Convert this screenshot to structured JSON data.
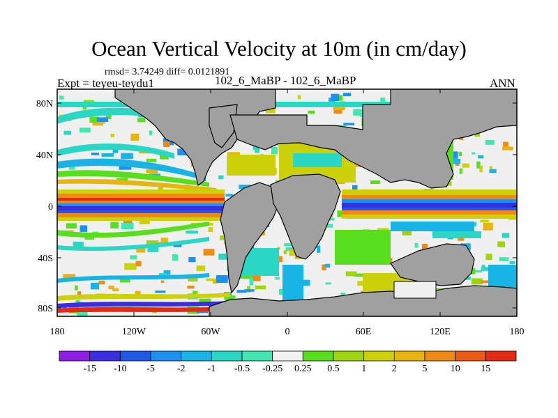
{
  "title": "Ocean Vertical Velocity at 10m (in cm/day)",
  "stats": "rmsd= 3.74249 diff= 0.0121891",
  "left_label": "Expt = teyeu-teydu1",
  "center_label": "102_6_MaBP - 102_6_MaBP",
  "right_label": "ANN",
  "lat_ticks": [
    "80N",
    "40N",
    "0",
    "40S",
    "80S"
  ],
  "lon_ticks": [
    "180",
    "120W",
    "60W",
    "0",
    "60E",
    "120E",
    "180"
  ],
  "colorbar": {
    "colors": [
      "#8f1de6",
      "#3a2ee0",
      "#2059e8",
      "#1e90f2",
      "#19b4e6",
      "#2ad7c4",
      "#42e6b0",
      "#f0f0f0",
      "#57de1c",
      "#9ed410",
      "#cdd10a",
      "#e8b410",
      "#ef8a13",
      "#ec5a16",
      "#e42a12"
    ],
    "labels": [
      "-15",
      "-10",
      "-5",
      "-2",
      "-1",
      "-0.5",
      "-0.25",
      "0.25",
      "0.5",
      "1",
      "2",
      "5",
      "10",
      "15"
    ]
  },
  "colors": {
    "land": "#a0a0a0",
    "ocean": "#f0f0f0"
  }
}
